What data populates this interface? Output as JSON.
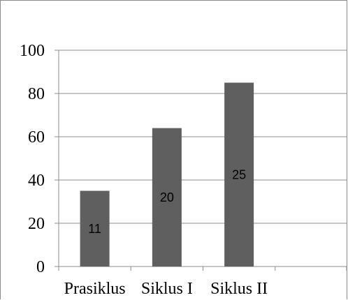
{
  "chart_data": {
    "type": "bar",
    "categories": [
      "Prasiklus",
      "Siklus I",
      "Siklus II",
      ""
    ],
    "values": [
      35,
      64,
      85,
      null
    ],
    "data_labels": [
      "11",
      "20",
      "25",
      ""
    ],
    "title": "",
    "xlabel": "",
    "ylabel": "",
    "ylim": [
      0,
      100
    ],
    "yticks": [
      0,
      20,
      40,
      60,
      80,
      100
    ],
    "grid": true,
    "legend": "none",
    "colors": {
      "bar": "#5f5f5f",
      "grid": "#8c8c8c",
      "axis": "#8c8c8c"
    }
  }
}
